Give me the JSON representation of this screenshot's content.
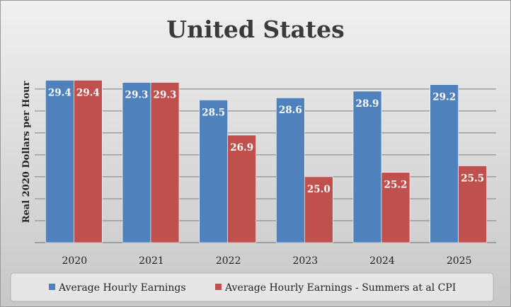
{
  "chart_data": {
    "type": "bar",
    "title": "United States",
    "xlabel": "",
    "ylabel": "Real 2020 Dollars per Hour",
    "categories": [
      "2020",
      "2021",
      "2022",
      "2023",
      "2024",
      "2025"
    ],
    "series": [
      {
        "name": "Average Hourly Earnings",
        "color": "#4f81bd",
        "values": [
          29.4,
          29.3,
          28.5,
          28.6,
          28.9,
          29.2
        ],
        "labels": [
          "29.4",
          "29.3",
          "28.5",
          "28.6",
          "28.9",
          "29.2"
        ]
      },
      {
        "name": "Average Hourly Earnings - Summers at al CPI",
        "color": "#c0504d",
        "values": [
          29.4,
          29.3,
          26.9,
          25.0,
          25.2,
          25.5
        ],
        "labels": [
          "29.4",
          "29.3",
          "26.9",
          "25.0",
          "25.2",
          "25.5"
        ]
      }
    ],
    "ylim": [
      22.0,
      29.8
    ],
    "gridlines": [
      23,
      24,
      25,
      26,
      27,
      28,
      29
    ],
    "grid": true,
    "legend_position": "bottom",
    "gridline_color": "#7f7f7f"
  }
}
